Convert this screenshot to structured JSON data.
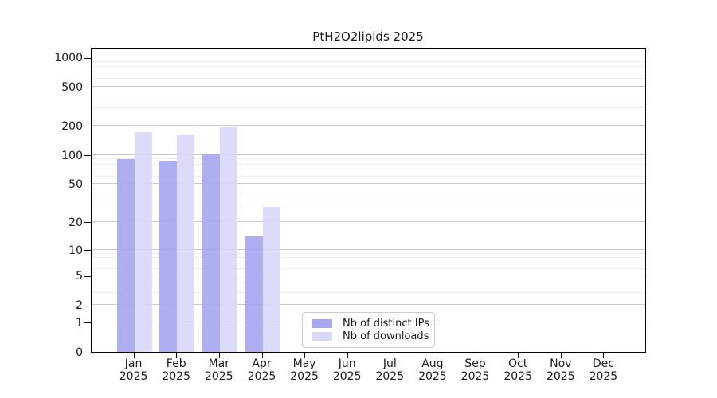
{
  "figure": {
    "background": "#ffffff"
  },
  "colors": {
    "spine": "#000000",
    "major_grid": "#c8c8c8",
    "minor_grid": "#ededed",
    "text": "#1a1a1a",
    "legend_border": "#cccccc",
    "distinct_ips": "#a5a5f0",
    "downloads": "#d8d8f9"
  },
  "chart_data": {
    "type": "bar",
    "title": "PtH2O2lipids 2025",
    "categories": [
      "Jan",
      "Feb",
      "Mar",
      "Apr",
      "May",
      "Jun",
      "Jul",
      "Aug",
      "Sep",
      "Oct",
      "Nov",
      "Dec"
    ],
    "year": "2025",
    "series": [
      {
        "name": "Nb of distinct IPs",
        "color": "#a5a5f0",
        "values": [
          91,
          87,
          102,
          14,
          0,
          0,
          0,
          0,
          0,
          0,
          0,
          0
        ]
      },
      {
        "name": "Nb of downloads",
        "color": "#d8d8f9",
        "values": [
          172,
          163,
          192,
          29,
          0,
          0,
          0,
          0,
          0,
          0,
          0,
          0
        ]
      }
    ],
    "xlabel": "",
    "ylabel": "",
    "yscale": "log1p",
    "y_ticks": [
      0,
      1,
      2,
      5,
      10,
      20,
      50,
      100,
      200,
      500,
      1000
    ],
    "y_minor_gridlines": [
      3,
      4,
      6,
      7,
      8,
      9,
      30,
      40,
      60,
      70,
      80,
      90,
      300,
      400,
      600,
      700,
      800,
      900
    ],
    "ylim": [
      0,
      1275
    ],
    "grid": true,
    "legend_position": "lower-center-inside"
  }
}
